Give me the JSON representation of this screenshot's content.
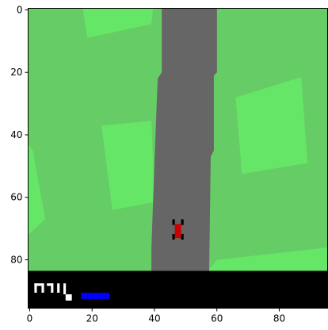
{
  "chart_data": {
    "type": "image",
    "xlim": [
      -0.5,
      95.5
    ],
    "ylim": [
      95.5,
      -0.5
    ],
    "xticks": [
      0,
      20,
      40,
      60,
      80
    ],
    "yticks": [
      0,
      20,
      40,
      60,
      80
    ]
  }
}
